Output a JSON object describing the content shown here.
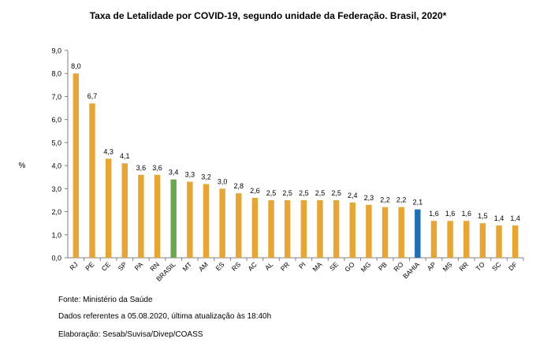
{
  "chart_data": {
    "type": "bar",
    "title": "Taxa de Letalidade por COVID-19, segundo unidade da Federação. Brasil, 2020*",
    "ylabel": "%",
    "xlabel": "",
    "ylim": [
      0,
      9
    ],
    "yticks": [
      "0,0",
      "1,0",
      "2,0",
      "3,0",
      "4,0",
      "5,0",
      "6,0",
      "7,0",
      "8,0",
      "9,0"
    ],
    "categories": [
      "RJ",
      "PE",
      "CE",
      "SP",
      "PA",
      "RN",
      "BRASIL",
      "MT",
      "AM",
      "ES",
      "RS",
      "AC",
      "AL",
      "PR",
      "PI",
      "MA",
      "SE",
      "GO",
      "MG",
      "PB",
      "RO",
      "BAHIA",
      "AP",
      "MS",
      "RR",
      "TO",
      "SC",
      "DF"
    ],
    "values": [
      8.0,
      6.7,
      4.3,
      4.1,
      3.6,
      3.6,
      3.4,
      3.3,
      3.2,
      3.0,
      2.8,
      2.6,
      2.5,
      2.5,
      2.5,
      2.5,
      2.5,
      2.4,
      2.3,
      2.2,
      2.2,
      2.1,
      1.6,
      1.6,
      1.6,
      1.5,
      1.4,
      1.4
    ],
    "labels": [
      "8,0",
      "6,7",
      "4,3",
      "4,1",
      "3,6",
      "3,6",
      "3,4",
      "3,3",
      "3,2",
      "3,0",
      "2,8",
      "2,6",
      "2,5",
      "2,5",
      "2,5",
      "2,5",
      "2,5",
      "2,4",
      "2,3",
      "2,2",
      "2,2",
      "2,1",
      "1,6",
      "1,6",
      "1,6",
      "1,5",
      "1,4",
      "1,4"
    ],
    "grid": false,
    "legend": "none"
  },
  "colors": {
    "default_bar": "#E8A531",
    "brasil_bar": "#6AA84F",
    "bahia_bar": "#1F6FB5",
    "axis": "#7F7F7F"
  },
  "highlight": {
    "BRASIL": "brasil_bar",
    "BAHIA": "bahia_bar"
  },
  "notes": {
    "source": "Fonte: Ministério da Saúde",
    "data_ref": "Dados referentes a 05.08.2020, última atualização às 18:40h",
    "elaboration": "Elaboração: Sesab/Suvisa/Divep/COASS"
  }
}
